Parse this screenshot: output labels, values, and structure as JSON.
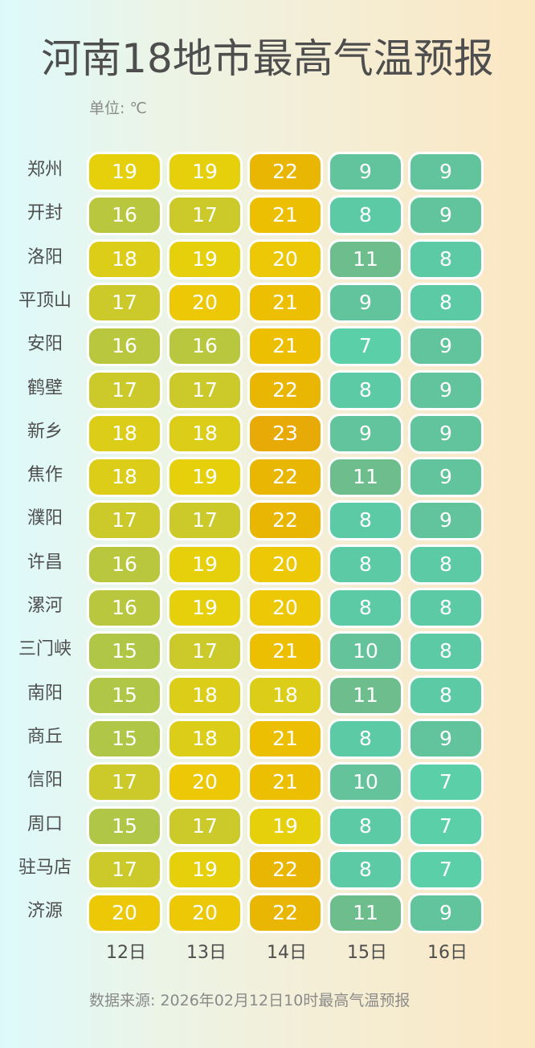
{
  "header": {
    "title": "河南18地市最高气温预报",
    "unit_label": "单位: ℃"
  },
  "footer": {
    "source": "数据来源: 2026年02月12日10时最高气温预报"
  },
  "color_scale": {
    "7": "#5bcfa8",
    "8": "#5ccaa4",
    "9": "#62c49c",
    "10": "#64c39b",
    "11": "#6ebe8d",
    "15": "#afc647",
    "16": "#b8c73e",
    "17": "#cbca2a",
    "18": "#dbcd18",
    "19": "#e6d00b",
    "20": "#ecc807",
    "21": "#ecbf02",
    "22": "#eab604",
    "23": "#e8aa06"
  },
  "chart_data": {
    "type": "heatmap",
    "title": "河南18地市最高气温预报",
    "subtitle": "单位: ℃",
    "xlabel": "",
    "ylabel": "",
    "x": [
      "12日",
      "13日",
      "14日",
      "15日",
      "16日"
    ],
    "y": [
      "郑州",
      "开封",
      "洛阳",
      "平顶山",
      "安阳",
      "鹤壁",
      "新乡",
      "焦作",
      "濮阳",
      "许昌",
      "漯河",
      "三门峡",
      "南阳",
      "商丘",
      "信阳",
      "周口",
      "驻马店",
      "济源"
    ],
    "values": [
      [
        19,
        19,
        22,
        9,
        9
      ],
      [
        16,
        17,
        21,
        8,
        9
      ],
      [
        18,
        19,
        20,
        11,
        8
      ],
      [
        17,
        20,
        21,
        9,
        8
      ],
      [
        16,
        16,
        21,
        7,
        9
      ],
      [
        17,
        17,
        22,
        8,
        9
      ],
      [
        18,
        18,
        23,
        9,
        9
      ],
      [
        18,
        19,
        22,
        11,
        9
      ],
      [
        17,
        17,
        22,
        8,
        9
      ],
      [
        16,
        19,
        20,
        8,
        8
      ],
      [
        16,
        19,
        20,
        8,
        8
      ],
      [
        15,
        17,
        21,
        10,
        8
      ],
      [
        15,
        18,
        18,
        11,
        8
      ],
      [
        15,
        18,
        21,
        8,
        9
      ],
      [
        17,
        20,
        21,
        10,
        7
      ],
      [
        15,
        17,
        19,
        8,
        7
      ],
      [
        17,
        19,
        22,
        8,
        7
      ],
      [
        20,
        20,
        22,
        11,
        9
      ]
    ],
    "value_range": [
      7,
      23
    ],
    "annotation": "数据来源: 2026年02月12日10时最高气温预报",
    "legend": "none",
    "grid": false
  }
}
